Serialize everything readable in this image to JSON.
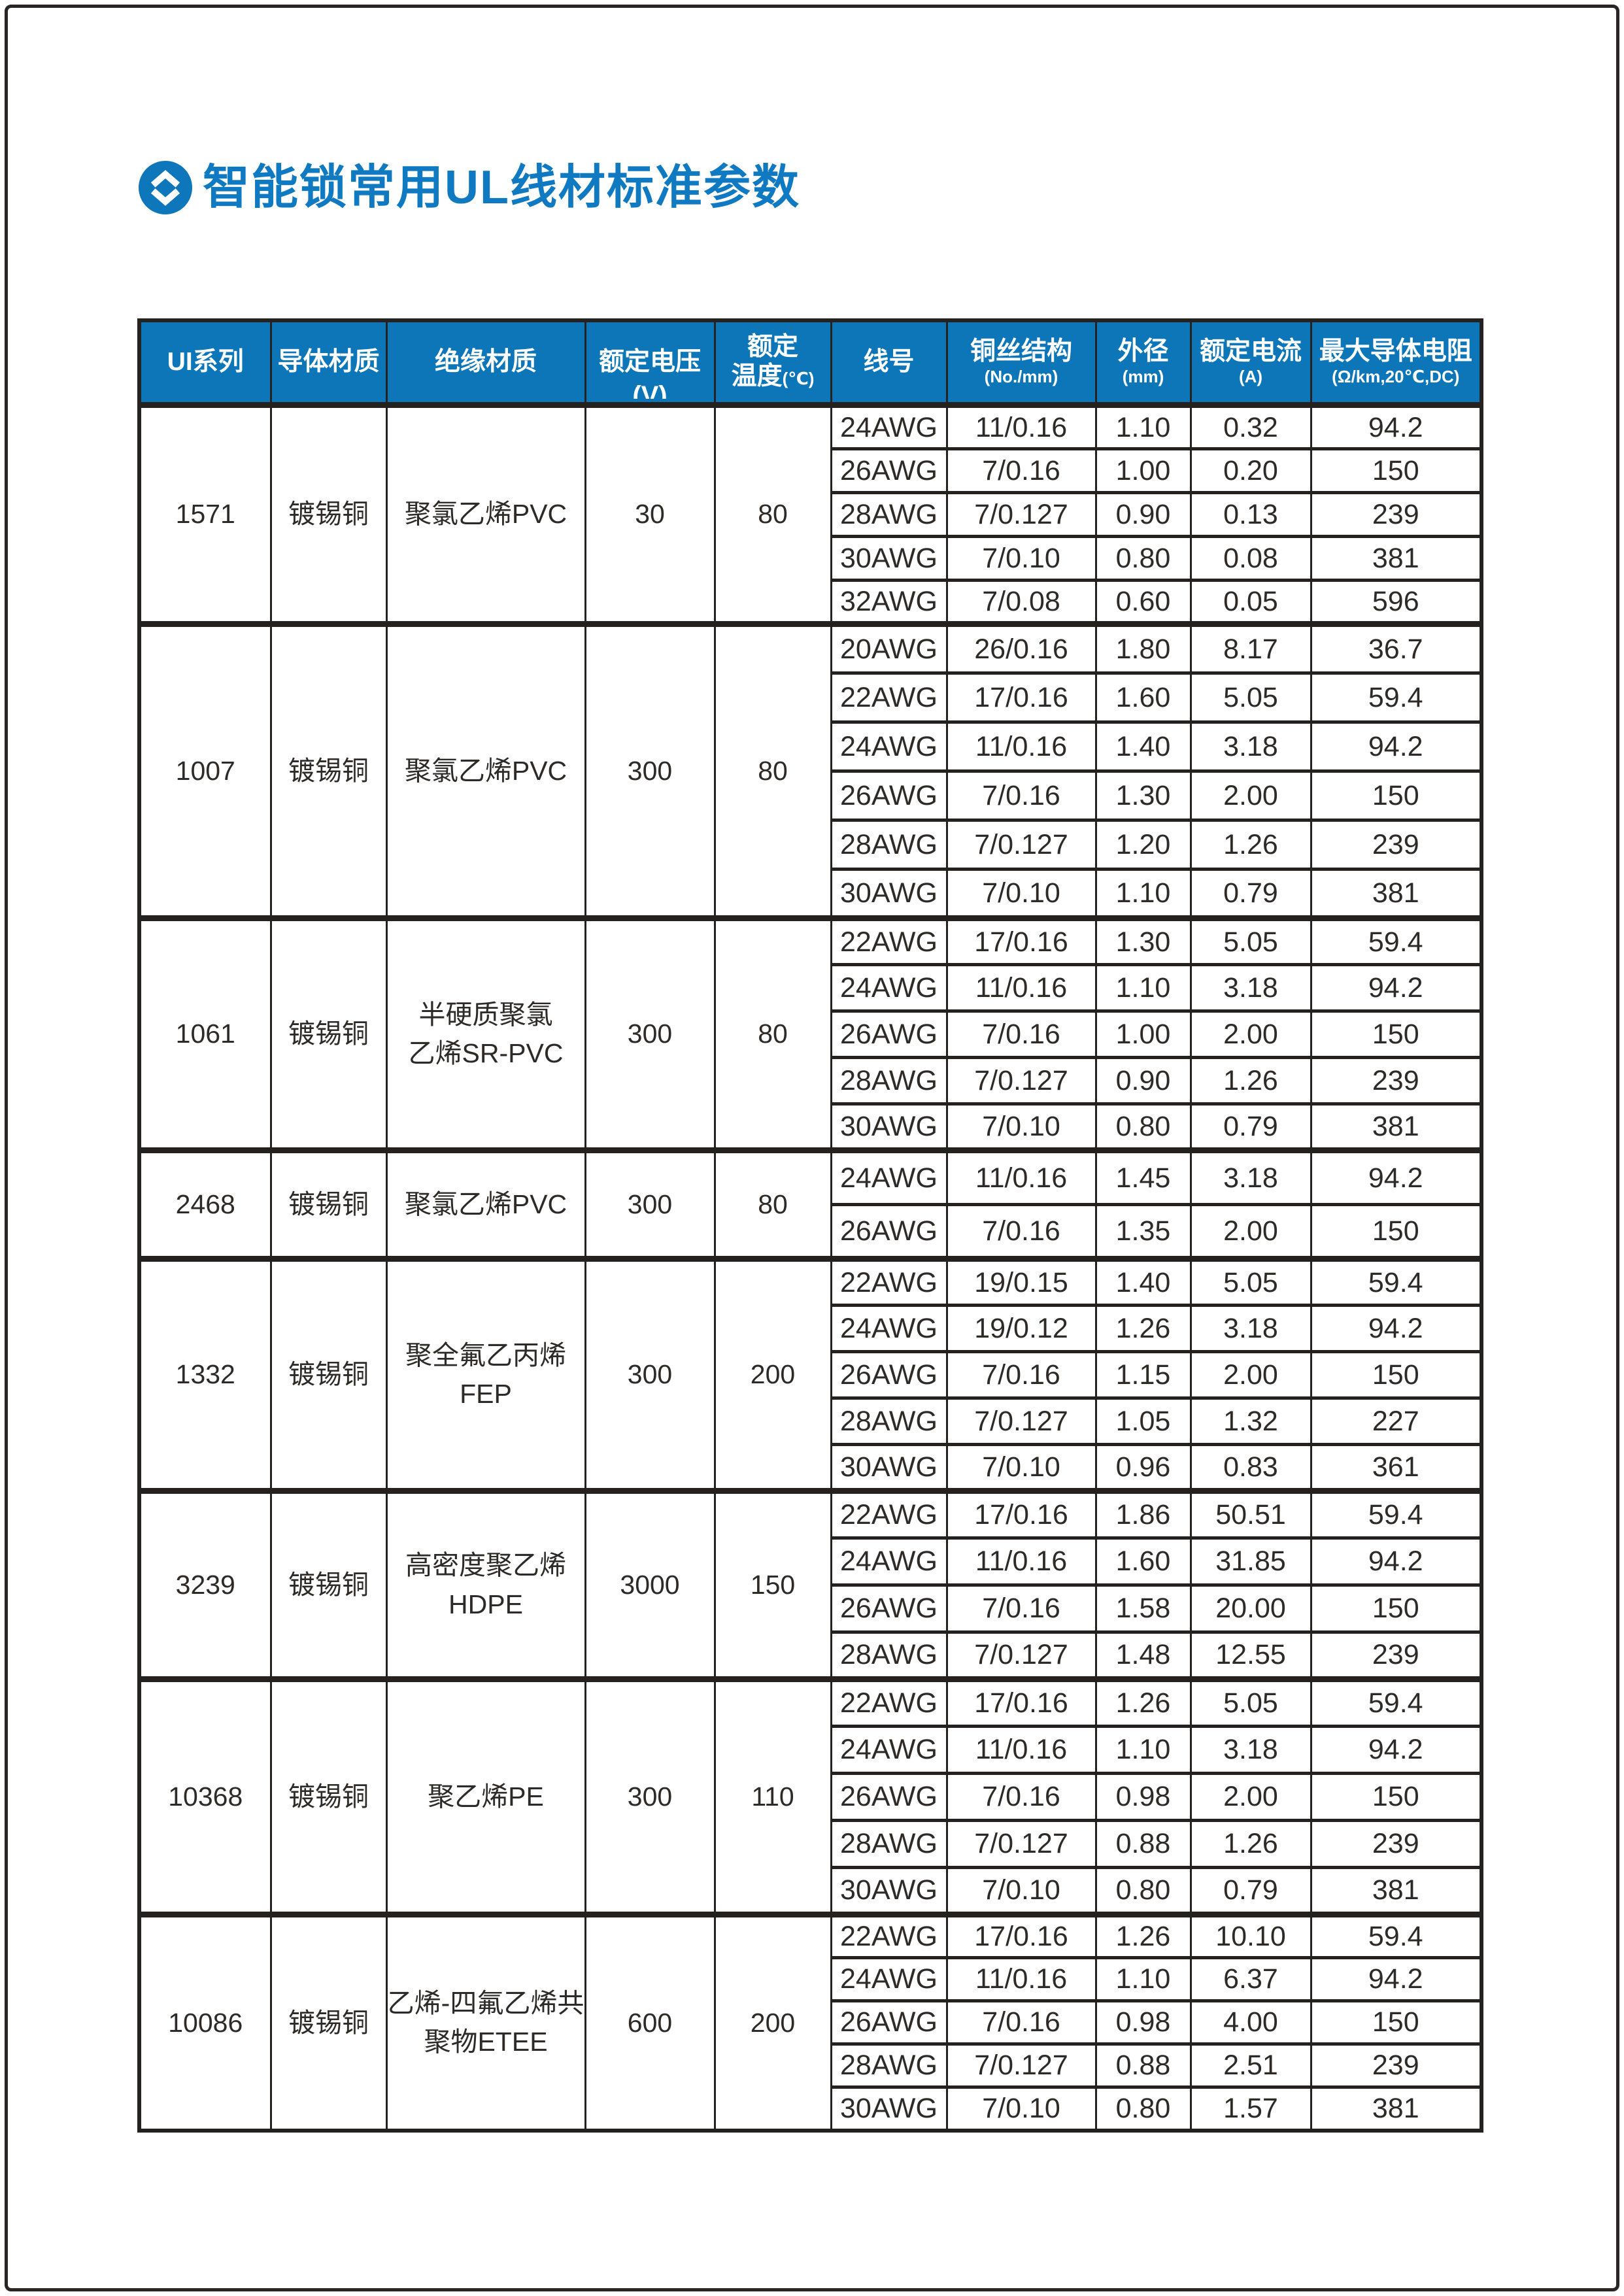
{
  "page": {
    "title": "智能锁常用UL线材标准参数",
    "title_icon": "up-down-chevron-circle-icon"
  },
  "colors": {
    "title_blue": "#0f7ac1",
    "header_background": "#0d76b8",
    "table_border": "#25211e",
    "header_text": "#ffffff",
    "body_text": "#2e2a27"
  },
  "table": {
    "headers": [
      {
        "line1": "UI系列"
      },
      {
        "line1": "导体材质"
      },
      {
        "line1": "绝缘材质"
      },
      {
        "line1": "额定电压",
        "hang": "(V)"
      },
      {
        "line1": "额定",
        "line2": "温度",
        "suffix": "(℃)"
      },
      {
        "line1": "线号"
      },
      {
        "line1": "铜丝结构",
        "sub": "(No./mm)"
      },
      {
        "line1": "外径",
        "sub": "(mm)"
      },
      {
        "line1": "额定电流",
        "sub": "(A)"
      },
      {
        "line1": "最大导体电阻",
        "sub": "(Ω/km,20℃,DC)"
      }
    ],
    "groups": [
      {
        "series": "1571",
        "conductor": "镀锡铜",
        "insulation": [
          "聚氯乙烯PVC"
        ],
        "voltage": "30",
        "temperature": "80",
        "rows": [
          [
            "24AWG",
            "11/0.16",
            "1.10",
            "0.32",
            "94.2"
          ],
          [
            "26AWG",
            "7/0.16",
            "1.00",
            "0.20",
            "150"
          ],
          [
            "28AWG",
            "7/0.127",
            "0.90",
            "0.13",
            "239"
          ],
          [
            "30AWG",
            "7/0.10",
            "0.80",
            "0.08",
            "381"
          ],
          [
            "32AWG",
            "7/0.08",
            "0.60",
            "0.05",
            "596"
          ]
        ]
      },
      {
        "series": "1007",
        "conductor": "镀锡铜",
        "insulation": [
          "聚氯乙烯PVC"
        ],
        "voltage": "300",
        "temperature": "80",
        "rows": [
          [
            "20AWG",
            "26/0.16",
            "1.80",
            "8.17",
            "36.7"
          ],
          [
            "22AWG",
            "17/0.16",
            "1.60",
            "5.05",
            "59.4"
          ],
          [
            "24AWG",
            "11/0.16",
            "1.40",
            "3.18",
            "94.2"
          ],
          [
            "26AWG",
            "7/0.16",
            "1.30",
            "2.00",
            "150"
          ],
          [
            "28AWG",
            "7/0.127",
            "1.20",
            "1.26",
            "239"
          ],
          [
            "30AWG",
            "7/0.10",
            "1.10",
            "0.79",
            "381"
          ]
        ]
      },
      {
        "series": "1061",
        "conductor": "镀锡铜",
        "insulation": [
          "半硬质聚氯",
          "乙烯SR-PVC"
        ],
        "voltage": "300",
        "temperature": "80",
        "rows": [
          [
            "22AWG",
            "17/0.16",
            "1.30",
            "5.05",
            "59.4"
          ],
          [
            "24AWG",
            "11/0.16",
            "1.10",
            "3.18",
            "94.2"
          ],
          [
            "26AWG",
            "7/0.16",
            "1.00",
            "2.00",
            "150"
          ],
          [
            "28AWG",
            "7/0.127",
            "0.90",
            "1.26",
            "239"
          ],
          [
            "30AWG",
            "7/0.10",
            "0.80",
            "0.79",
            "381"
          ]
        ]
      },
      {
        "series": "2468",
        "conductor": "镀锡铜",
        "insulation": [
          "聚氯乙烯PVC"
        ],
        "voltage": "300",
        "temperature": "80",
        "rows": [
          [
            "24AWG",
            "11/0.16",
            "1.45",
            "3.18",
            "94.2"
          ],
          [
            "26AWG",
            "7/0.16",
            "1.35",
            "2.00",
            "150"
          ]
        ]
      },
      {
        "series": "1332",
        "conductor": "镀锡铜",
        "insulation": [
          "聚全氟乙丙烯",
          "FEP"
        ],
        "voltage": "300",
        "temperature": "200",
        "rows": [
          [
            "22AWG",
            "19/0.15",
            "1.40",
            "5.05",
            "59.4"
          ],
          [
            "24AWG",
            "19/0.12",
            "1.26",
            "3.18",
            "94.2"
          ],
          [
            "26AWG",
            "7/0.16",
            "1.15",
            "2.00",
            "150"
          ],
          [
            "28AWG",
            "7/0.127",
            "1.05",
            "1.32",
            "227"
          ],
          [
            "30AWG",
            "7/0.10",
            "0.96",
            "0.83",
            "361"
          ]
        ]
      },
      {
        "series": "3239",
        "conductor": "镀锡铜",
        "insulation": [
          "高密度聚乙烯",
          "HDPE"
        ],
        "voltage": "3000",
        "temperature": "150",
        "rows": [
          [
            "22AWG",
            "17/0.16",
            "1.86",
            "50.51",
            "59.4"
          ],
          [
            "24AWG",
            "11/0.16",
            "1.60",
            "31.85",
            "94.2"
          ],
          [
            "26AWG",
            "7/0.16",
            "1.58",
            "20.00",
            "150"
          ],
          [
            "28AWG",
            "7/0.127",
            "1.48",
            "12.55",
            "239"
          ]
        ]
      },
      {
        "series": "10368",
        "conductor": "镀锡铜",
        "insulation": [
          "聚乙烯PE"
        ],
        "voltage": "300",
        "temperature": "110",
        "rows": [
          [
            "22AWG",
            "17/0.16",
            "1.26",
            "5.05",
            "59.4"
          ],
          [
            "24AWG",
            "11/0.16",
            "1.10",
            "3.18",
            "94.2"
          ],
          [
            "26AWG",
            "7/0.16",
            "0.98",
            "2.00",
            "150"
          ],
          [
            "28AWG",
            "7/0.127",
            "0.88",
            "1.26",
            "239"
          ],
          [
            "30AWG",
            "7/0.10",
            "0.80",
            "0.79",
            "381"
          ]
        ]
      },
      {
        "series": "10086",
        "conductor": "镀锡铜",
        "insulation": [
          "乙烯-四氟乙烯共",
          "聚物ETEE"
        ],
        "voltage": "600",
        "temperature": "200",
        "rows": [
          [
            "22AWG",
            "17/0.16",
            "1.26",
            "10.10",
            "59.4"
          ],
          [
            "24AWG",
            "11/0.16",
            "1.10",
            "6.37",
            "94.2"
          ],
          [
            "26AWG",
            "7/0.16",
            "0.98",
            "4.00",
            "150"
          ],
          [
            "28AWG",
            "7/0.127",
            "0.88",
            "2.51",
            "239"
          ],
          [
            "30AWG",
            "7/0.10",
            "0.80",
            "1.57",
            "381"
          ]
        ]
      }
    ]
  }
}
